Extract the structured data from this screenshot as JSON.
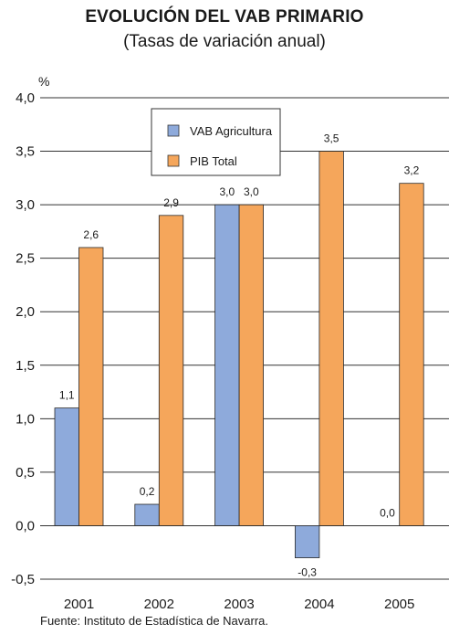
{
  "title": "EVOLUCIÓN DEL VAB PRIMARIO",
  "subtitle": "(Tasas de variación anual)",
  "source": "Fuente: Instituto de Estadística de Navarra.",
  "colors": {
    "vab": "#8eaadb",
    "pib": "#f5a65b",
    "grid": "#333333",
    "text": "#1a1a1a"
  },
  "chart_data": {
    "type": "bar",
    "title": "EVOLUCIÓN DEL VAB PRIMARIO",
    "subtitle": "(Tasas de variación anual)",
    "ylabel": "%",
    "xlabel": "",
    "ylim": [
      -0.5,
      4.0
    ],
    "yticks": [
      -0.5,
      0.0,
      0.5,
      1.0,
      1.5,
      2.0,
      2.5,
      3.0,
      3.5,
      4.0
    ],
    "ytick_labels": [
      "-0,5",
      "0,0",
      "0,5",
      "1,0",
      "1,5",
      "2,0",
      "2,5",
      "3,0",
      "3,5",
      "4,0"
    ],
    "grid": true,
    "legend_position": "top-center",
    "categories": [
      "2001",
      "2002",
      "2003",
      "2004",
      "2005"
    ],
    "series": [
      {
        "name": "VAB Agricultura",
        "color": "#8eaadb",
        "values": [
          1.1,
          0.2,
          3.0,
          -0.3,
          0.0
        ],
        "labels": [
          "1,1",
          "0,2",
          "3,0",
          "-0,3",
          "0,0"
        ]
      },
      {
        "name": "PIB Total",
        "color": "#f5a65b",
        "values": [
          2.6,
          2.9,
          3.0,
          3.5,
          3.2
        ],
        "labels": [
          "2,6",
          "2,9",
          "3,0",
          "3,5",
          "3,2"
        ]
      }
    ]
  }
}
